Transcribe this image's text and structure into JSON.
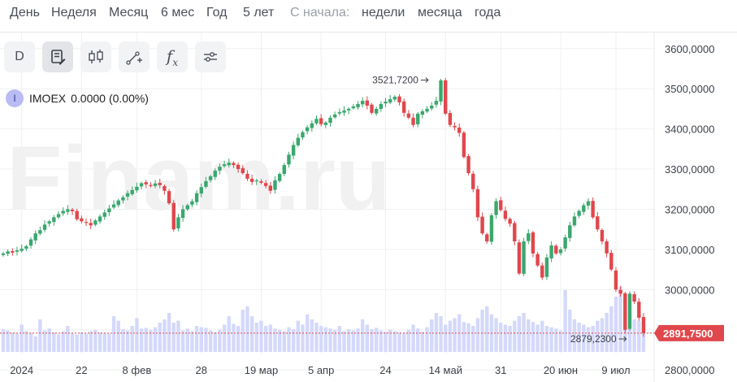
{
  "periods": [
    {
      "label": "День",
      "interactable": true
    },
    {
      "label": "Неделя",
      "interactable": true
    },
    {
      "label": "Месяц",
      "interactable": true
    },
    {
      "label": "6 мес",
      "interactable": true
    },
    {
      "label": "Год",
      "interactable": true
    },
    {
      "label": "5 лет",
      "interactable": true
    },
    {
      "label": "С начала:",
      "interactable": false
    },
    {
      "label": "недели",
      "interactable": true
    },
    {
      "label": "месяца",
      "interactable": true
    },
    {
      "label": "года",
      "interactable": true
    }
  ],
  "toolbar": {
    "timeframe_label": "D",
    "buttons": [
      {
        "name": "timeframe-button",
        "icon": "letter-d"
      },
      {
        "name": "chart-notes-button",
        "icon": "document-pen-icon"
      },
      {
        "name": "candle-type-button",
        "icon": "candlestick-icon"
      },
      {
        "name": "drawing-tools-button",
        "icon": "line-plus-icon"
      },
      {
        "name": "indicators-button",
        "icon": "function-fx-icon"
      },
      {
        "name": "settings-button",
        "icon": "sliders-icon"
      }
    ]
  },
  "legend": {
    "badge": "I",
    "ticker": "IMOEX",
    "value": "0.0000",
    "change": "(0.00%)"
  },
  "watermark": "Finam.ru",
  "colors": {
    "up": "#3aa76d",
    "down": "#e0474c",
    "volume": "#d4d9fb",
    "price_line": "#e0474c",
    "grid": "#eef0f3"
  },
  "chart_data": {
    "type": "candlestick",
    "symbol": "IMOEX",
    "y_axis": {
      "ticks": [
        2800,
        2900,
        3000,
        3100,
        3200,
        3300,
        3400,
        3500,
        3600
      ],
      "tick_labels": [
        "2800,0000",
        "",
        "3000,0000",
        "3100,0000",
        "3200,0000",
        "3300,0000",
        "3400,0000",
        "3500,0000",
        "3600,0000"
      ],
      "range": [
        2770,
        3640
      ]
    },
    "x_axis": {
      "tick_labels": [
        "2024",
        "22",
        "8 фев",
        "28",
        "19 мар",
        "5 апр",
        "24",
        "14 май",
        "31",
        "20 июн",
        "9 июл"
      ],
      "tick_index": [
        4,
        17,
        29,
        43,
        56,
        69,
        83,
        96,
        108,
        121,
        133
      ]
    },
    "max_annotation": {
      "label": "3521,7200",
      "value": 3521.72,
      "index": 94
    },
    "min_annotation": {
      "label": "2879,2300",
      "value": 2879.23,
      "index": 137
    },
    "last_price": {
      "label": "2891,7500",
      "value": 2891.75
    },
    "closes": [
      3090,
      3095,
      3092,
      3098,
      3102,
      3108,
      3125,
      3140,
      3148,
      3162,
      3170,
      3180,
      3188,
      3196,
      3200,
      3195,
      3175,
      3170,
      3166,
      3160,
      3172,
      3182,
      3192,
      3202,
      3212,
      3222,
      3230,
      3240,
      3248,
      3256,
      3265,
      3262,
      3258,
      3264,
      3260,
      3246,
      3215,
      3150,
      3180,
      3200,
      3210,
      3220,
      3240,
      3255,
      3270,
      3282,
      3296,
      3306,
      3312,
      3316,
      3310,
      3300,
      3290,
      3276,
      3268,
      3272,
      3266,
      3258,
      3246,
      3272,
      3288,
      3310,
      3336,
      3360,
      3378,
      3392,
      3404,
      3414,
      3425,
      3412,
      3416,
      3428,
      3436,
      3442,
      3446,
      3450,
      3456,
      3462,
      3470,
      3458,
      3440,
      3450,
      3462,
      3468,
      3474,
      3480,
      3466,
      3440,
      3428,
      3410,
      3438,
      3444,
      3450,
      3458,
      3470,
      3521,
      3438,
      3410,
      3404,
      3390,
      3330,
      3290,
      3250,
      3180,
      3140,
      3120,
      3185,
      3220,
      3198,
      3176,
      3164,
      3120,
      3040,
      3120,
      3140,
      3090,
      3060,
      3030,
      3080,
      3110,
      3090,
      3100,
      3130,
      3160,
      3182,
      3196,
      3210,
      3220,
      3180,
      3150,
      3120,
      3090,
      3050,
      3000,
      2990,
      2900,
      2990,
      2970,
      2930,
      2892
    ],
    "volumes": [
      0.35,
      0.33,
      0.3,
      0.28,
      0.42,
      0.32,
      0.29,
      0.24,
      0.5,
      0.33,
      0.36,
      0.3,
      0.27,
      0.32,
      0.4,
      0.29,
      0.27,
      0.3,
      0.28,
      0.32,
      0.34,
      0.3,
      0.29,
      0.28,
      0.55,
      0.48,
      0.35,
      0.33,
      0.4,
      0.52,
      0.36,
      0.37,
      0.34,
      0.38,
      0.45,
      0.5,
      0.6,
      0.45,
      0.48,
      0.33,
      0.36,
      0.32,
      0.4,
      0.38,
      0.37,
      0.33,
      0.3,
      0.34,
      0.42,
      0.55,
      0.43,
      0.4,
      0.65,
      0.7,
      0.55,
      0.45,
      0.48,
      0.4,
      0.42,
      0.36,
      0.34,
      0.32,
      0.38,
      0.35,
      0.48,
      0.42,
      0.58,
      0.5,
      0.45,
      0.4,
      0.38,
      0.36,
      0.34,
      0.4,
      0.32,
      0.35,
      0.33,
      0.36,
      0.5,
      0.42,
      0.35,
      0.37,
      0.33,
      0.31,
      0.34,
      0.32,
      0.3,
      0.29,
      0.34,
      0.42,
      0.36,
      0.31,
      0.38,
      0.5,
      0.6,
      0.55,
      0.42,
      0.48,
      0.52,
      0.58,
      0.46,
      0.44,
      0.4,
      0.52,
      0.65,
      0.7,
      0.58,
      0.52,
      0.45,
      0.42,
      0.4,
      0.48,
      0.55,
      0.6,
      0.5,
      0.46,
      0.42,
      0.48,
      0.4,
      0.38,
      0.36,
      0.33,
      0.95,
      0.65,
      0.5,
      0.45,
      0.42,
      0.38,
      0.4,
      0.48,
      0.52,
      0.6,
      0.7,
      0.85,
      1.0,
      0.85,
      0.62,
      0.5,
      0.48,
      0.45
    ]
  }
}
